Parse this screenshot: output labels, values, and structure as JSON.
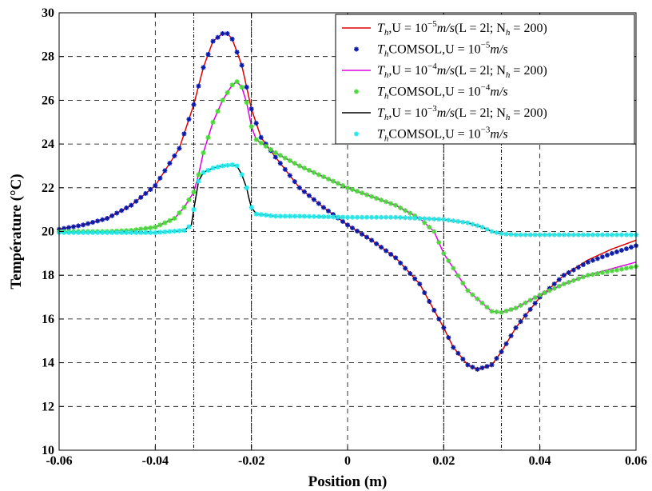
{
  "chart_data": {
    "type": "line",
    "xlabel": "Position (m)",
    "ylabel": "Température (°C)",
    "xlim": [
      -0.06,
      0.06
    ],
    "ylim": [
      10,
      30
    ],
    "xticks": [
      -0.06,
      -0.04,
      -0.02,
      0,
      0.02,
      0.04,
      0.06
    ],
    "xtick_labels": [
      "-0.06",
      "-0.04",
      "-0.02",
      "0",
      "0.02",
      "0.04",
      "0.06"
    ],
    "yticks": [
      10,
      12,
      14,
      16,
      18,
      20,
      22,
      24,
      26,
      28,
      30
    ],
    "ytick_labels": [
      "10",
      "12",
      "14",
      "16",
      "18",
      "20",
      "22",
      "24",
      "26",
      "28",
      "30"
    ],
    "grid": true,
    "grid_style": "dashed",
    "legend_position": "top-right",
    "vertical_markers_x": [
      -0.032,
      -0.02,
      0.02,
      0.032
    ],
    "series": [
      {
        "name": "T_h,U = 10^-5 m/s(L = 2l; N_h = 200)",
        "style": "line",
        "color": "#e00000",
        "x": [
          -0.06,
          -0.055,
          -0.05,
          -0.045,
          -0.04,
          -0.035,
          -0.032,
          -0.03,
          -0.028,
          -0.026,
          -0.025,
          -0.024,
          -0.022,
          -0.02,
          -0.018,
          -0.015,
          -0.01,
          -0.005,
          0,
          0.005,
          0.01,
          0.015,
          0.02,
          0.022,
          0.025,
          0.027,
          0.03,
          0.032,
          0.035,
          0.04,
          0.045,
          0.05,
          0.055,
          0.06
        ],
        "y": [
          20.1,
          20.3,
          20.6,
          21.2,
          22.1,
          23.8,
          25.8,
          27.5,
          28.7,
          29.05,
          29.05,
          28.8,
          27.6,
          25.6,
          24.3,
          23.4,
          22.0,
          21.1,
          20.3,
          19.6,
          18.8,
          17.6,
          15.6,
          14.7,
          13.9,
          13.7,
          13.9,
          14.5,
          15.6,
          17.0,
          18.0,
          18.7,
          19.2,
          19.6
        ]
      },
      {
        "name": "T_h COMSOL,U = 10^-5 m/s",
        "style": "markers",
        "color": "#0a1aa8",
        "x": [
          -0.06,
          -0.055,
          -0.05,
          -0.045,
          -0.04,
          -0.035,
          -0.032,
          -0.03,
          -0.028,
          -0.026,
          -0.025,
          -0.024,
          -0.022,
          -0.02,
          -0.018,
          -0.015,
          -0.01,
          -0.005,
          0,
          0.005,
          0.01,
          0.015,
          0.02,
          0.022,
          0.025,
          0.027,
          0.03,
          0.032,
          0.035,
          0.04,
          0.045,
          0.05,
          0.055,
          0.06
        ],
        "y": [
          20.1,
          20.3,
          20.6,
          21.2,
          22.1,
          23.8,
          25.8,
          27.5,
          28.7,
          29.05,
          29.05,
          28.8,
          27.6,
          25.6,
          24.3,
          23.4,
          22.0,
          21.1,
          20.3,
          19.6,
          18.8,
          17.6,
          15.6,
          14.7,
          13.9,
          13.7,
          13.9,
          14.5,
          15.6,
          17.0,
          18.0,
          18.6,
          19.0,
          19.35
        ]
      },
      {
        "name": "T_h,U = 10^-4 m/s(L = 2l; N_h = 200)",
        "style": "line",
        "color": "#e000e0",
        "x": [
          -0.06,
          -0.05,
          -0.045,
          -0.04,
          -0.036,
          -0.034,
          -0.032,
          -0.031,
          -0.03,
          -0.028,
          -0.026,
          -0.024,
          -0.023,
          -0.022,
          -0.021,
          -0.02,
          -0.019,
          -0.017,
          -0.015,
          -0.01,
          -0.005,
          0,
          0.005,
          0.01,
          0.015,
          0.018,
          0.02,
          0.025,
          0.03,
          0.032,
          0.035,
          0.04,
          0.045,
          0.05,
          0.055,
          0.06
        ],
        "y": [
          20.0,
          20.0,
          20.05,
          20.2,
          20.6,
          21.1,
          21.8,
          22.6,
          23.6,
          25.0,
          26.0,
          26.7,
          26.85,
          26.6,
          25.9,
          24.8,
          24.2,
          23.9,
          23.6,
          23.0,
          22.5,
          22.0,
          21.6,
          21.2,
          20.6,
          20.0,
          19.0,
          17.3,
          16.35,
          16.3,
          16.5,
          17.1,
          17.6,
          18.0,
          18.3,
          18.6
        ]
      },
      {
        "name": "T_h COMSOL,U = 10^-4 m/s",
        "style": "markers",
        "color": "#4ad83a",
        "x": [
          -0.06,
          -0.05,
          -0.045,
          -0.04,
          -0.036,
          -0.034,
          -0.032,
          -0.031,
          -0.03,
          -0.028,
          -0.026,
          -0.024,
          -0.023,
          -0.022,
          -0.021,
          -0.02,
          -0.019,
          -0.017,
          -0.015,
          -0.01,
          -0.005,
          0,
          0.005,
          0.01,
          0.015,
          0.018,
          0.02,
          0.025,
          0.03,
          0.032,
          0.035,
          0.04,
          0.045,
          0.05,
          0.055,
          0.06
        ],
        "y": [
          20.0,
          20.0,
          20.05,
          20.2,
          20.6,
          21.1,
          21.8,
          22.6,
          23.6,
          25.0,
          26.0,
          26.7,
          26.85,
          26.6,
          25.9,
          24.8,
          24.2,
          23.9,
          23.6,
          23.0,
          22.5,
          22.0,
          21.6,
          21.2,
          20.6,
          20.0,
          19.0,
          17.3,
          16.35,
          16.3,
          16.5,
          17.1,
          17.6,
          18.0,
          18.2,
          18.4
        ]
      },
      {
        "name": "T_h,U = 10^-3 m/s(L = 2l; N_h = 200)",
        "style": "line",
        "color": "#000000",
        "x": [
          -0.06,
          -0.04,
          -0.034,
          -0.0325,
          -0.032,
          -0.031,
          -0.03,
          -0.028,
          -0.026,
          -0.024,
          -0.023,
          -0.022,
          -0.021,
          -0.0205,
          -0.02,
          -0.019,
          -0.015,
          -0.01,
          0,
          0.01,
          0.015,
          0.02,
          0.025,
          0.028,
          0.03,
          0.032,
          0.035,
          0.04,
          0.05,
          0.06
        ],
        "y": [
          19.95,
          19.95,
          20.05,
          20.3,
          21.0,
          22.3,
          22.7,
          22.9,
          23.0,
          23.05,
          23.0,
          22.6,
          22.0,
          21.5,
          21.1,
          20.8,
          20.7,
          20.7,
          20.65,
          20.65,
          20.6,
          20.55,
          20.4,
          20.2,
          20.0,
          19.9,
          19.85,
          19.85,
          19.85,
          19.85
        ]
      },
      {
        "name": "T_h COMSOL,U = 10^-3 m/s",
        "style": "markers",
        "color": "#21e8e8",
        "x": [
          -0.06,
          -0.04,
          -0.034,
          -0.0325,
          -0.032,
          -0.031,
          -0.03,
          -0.028,
          -0.026,
          -0.024,
          -0.023,
          -0.022,
          -0.021,
          -0.0205,
          -0.02,
          -0.019,
          -0.015,
          -0.01,
          0,
          0.01,
          0.015,
          0.02,
          0.025,
          0.028,
          0.03,
          0.032,
          0.035,
          0.04,
          0.05,
          0.06
        ],
        "y": [
          19.95,
          19.95,
          20.05,
          20.3,
          21.0,
          22.3,
          22.7,
          22.9,
          23.0,
          23.05,
          23.0,
          22.6,
          22.0,
          21.5,
          21.1,
          20.8,
          20.7,
          20.7,
          20.65,
          20.65,
          20.6,
          20.55,
          20.4,
          20.2,
          20.0,
          19.9,
          19.85,
          19.85,
          19.85,
          19.85
        ]
      }
    ]
  },
  "legend_entries": [
    {
      "base": "T",
      "sub": "h",
      "mid": ",U = 10",
      "sup": "−5",
      "unit": "m/s",
      "tail": "(L = 2l; N",
      "tail_sub": "h",
      "tail_end": " = 200)"
    },
    {
      "base": "T",
      "sub": "h",
      "mid": "COMSOL,U = 10",
      "sup": "−5",
      "unit": "m/s",
      "tail": "",
      "tail_sub": "",
      "tail_end": ""
    },
    {
      "base": "T",
      "sub": "h",
      "mid": ",U = 10",
      "sup": "−4",
      "unit": "m/s",
      "tail": "(L = 2l; N",
      "tail_sub": "h",
      "tail_end": " = 200)"
    },
    {
      "base": "T",
      "sub": "h",
      "mid": "COMSOL,U = 10",
      "sup": "−4",
      "unit": "m/s",
      "tail": "",
      "tail_sub": "",
      "tail_end": ""
    },
    {
      "base": "T",
      "sub": "h",
      "mid": ",U = 10",
      "sup": "−3",
      "unit": "m/s",
      "tail": "(L = 2l; N",
      "tail_sub": "h",
      "tail_end": " = 200)"
    },
    {
      "base": "T",
      "sub": "h",
      "mid": "COMSOL,U = 10",
      "sup": "−3",
      "unit": "m/s",
      "tail": "",
      "tail_sub": "",
      "tail_end": ""
    }
  ]
}
